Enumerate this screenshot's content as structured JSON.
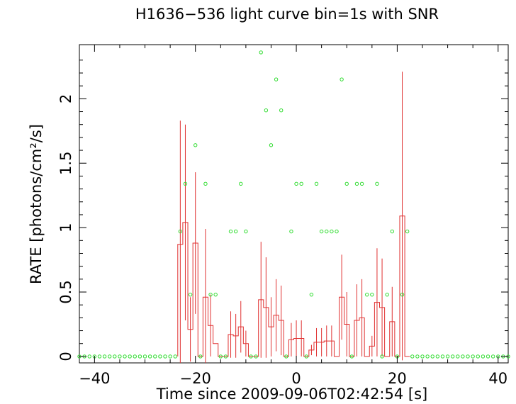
{
  "chart_data": {
    "type": "line",
    "title": "H1636−536 light curve bin=1s with SNR",
    "xlabel": "Time since 2009-09-06T02:42:54 [s]",
    "ylabel": "RATE [photons/cm²/s]",
    "xlim": [
      -43,
      42
    ],
    "ylim": [
      -0.05,
      2.42
    ],
    "x_ticks": [
      {
        "value": -40,
        "label": "−40"
      },
      {
        "value": -20,
        "label": "−20"
      },
      {
        "value": 0,
        "label": "0"
      },
      {
        "value": 20,
        "label": "20"
      },
      {
        "value": 40,
        "label": "40"
      }
    ],
    "y_ticks": [
      {
        "value": 0,
        "label": "0"
      },
      {
        "value": 0.5,
        "label": "0.5"
      },
      {
        "value": 1,
        "label": "1"
      },
      {
        "value": 1.5,
        "label": "1.5"
      },
      {
        "value": 2,
        "label": "2"
      }
    ],
    "grid": false,
    "legend": "none",
    "series": [
      {
        "style": "histogram-step",
        "color": "#e03030",
        "x": [
          -23,
          -22,
          -21,
          -20,
          -19,
          -18,
          -17,
          -16,
          -15,
          -14,
          -13,
          -12,
          -11,
          -10,
          -9,
          -8,
          -7,
          -6,
          -5,
          -4,
          -3,
          -2,
          -1,
          0,
          1,
          2,
          3,
          4,
          5,
          6,
          7,
          8,
          9,
          10,
          11,
          12,
          13,
          14,
          15,
          16,
          17,
          18,
          19,
          20,
          21,
          22
        ],
        "values": [
          0.87,
          1.04,
          0.21,
          0.88,
          0.0,
          0.46,
          0.24,
          0.1,
          0.0,
          0.0,
          0.17,
          0.16,
          0.23,
          0.1,
          0.0,
          0.0,
          0.44,
          0.38,
          0.23,
          0.32,
          0.28,
          0.0,
          0.13,
          0.14,
          0.14,
          0.0,
          0.05,
          0.11,
          0.11,
          0.12,
          0.12,
          0.0,
          0.46,
          0.25,
          0.0,
          0.28,
          0.3,
          0.0,
          0.08,
          0.42,
          0.38,
          0.0,
          0.27,
          0.0,
          1.09,
          0.0
        ],
        "errors": [
          0.96,
          0.76,
          0.25,
          0.55,
          0.0,
          0.53,
          0.24,
          0.0,
          0.0,
          0.0,
          0.18,
          0.17,
          0.2,
          0.1,
          0.0,
          0.0,
          0.45,
          0.39,
          0.23,
          0.28,
          0.27,
          0.0,
          0.13,
          0.14,
          0.14,
          0.0,
          0.04,
          0.11,
          0.11,
          0.12,
          0.12,
          0.0,
          0.33,
          0.25,
          0.0,
          0.28,
          0.3,
          0.0,
          0.08,
          0.42,
          0.38,
          0.0,
          0.27,
          0.0,
          1.12,
          0.0
        ]
      },
      {
        "style": "scatter-open-circles",
        "color": "#33dd33",
        "x": [
          -43,
          -42,
          -41,
          -40,
          -39,
          -38,
          -37,
          -36,
          -35,
          -34,
          -33,
          -32,
          -31,
          -30,
          -29,
          -28,
          -27,
          -26,
          -25,
          -24,
          -23,
          -22,
          -21,
          -20,
          -19,
          -18,
          -17,
          -16,
          -15,
          -14,
          -13,
          -12,
          -11,
          -10,
          -9,
          -8,
          -7,
          -6,
          -5,
          -4,
          -3,
          -2,
          -1,
          0,
          1,
          2,
          3,
          4,
          5,
          6,
          7,
          8,
          9,
          10,
          11,
          12,
          13,
          14,
          15,
          16,
          17,
          18,
          19,
          20,
          21,
          22,
          23,
          24,
          25,
          26,
          27,
          28,
          29,
          30,
          31,
          32,
          33,
          34,
          35,
          36,
          37,
          38,
          39,
          40,
          41,
          42
        ],
        "values": [
          0,
          0,
          0,
          0,
          0,
          0,
          0,
          0,
          0,
          0,
          0,
          0,
          0,
          0,
          0,
          0,
          0,
          0,
          0,
          0,
          0.97,
          1.34,
          0.48,
          1.64,
          0,
          1.34,
          0.48,
          0.48,
          0,
          0,
          0.97,
          0.97,
          1.34,
          0.97,
          0,
          0,
          2.36,
          1.91,
          1.64,
          2.15,
          1.91,
          0,
          0.97,
          1.34,
          1.34,
          0,
          0.48,
          1.34,
          0.97,
          0.97,
          0.97,
          0.97,
          2.15,
          1.34,
          0,
          1.34,
          1.34,
          0.48,
          0.48,
          1.34,
          0,
          0.48,
          0.97,
          0,
          0.48,
          0.97,
          0,
          0,
          0,
          0,
          0,
          0,
          0,
          0,
          0,
          0,
          0,
          0,
          0,
          0,
          0,
          0,
          0,
          0,
          0,
          0
        ]
      }
    ]
  }
}
